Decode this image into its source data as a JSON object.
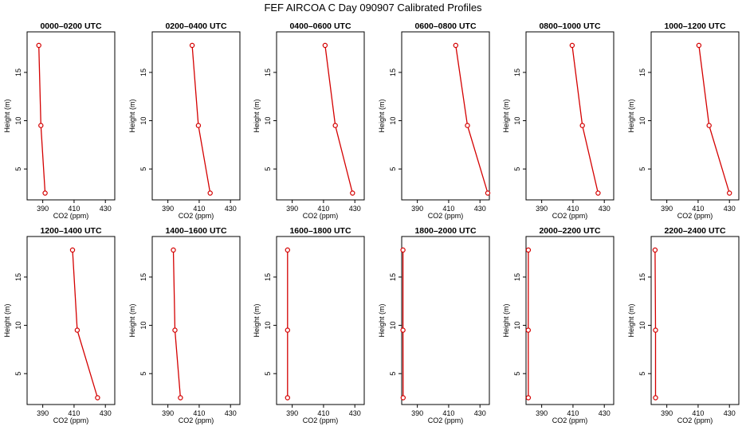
{
  "figure_title": "FEF AIRCOA C  Day 090907  Calibrated Profiles",
  "chart_data": [
    {
      "type": "line",
      "title": "0000–0200 UTC",
      "xlabel": "CO2 (ppm)",
      "ylabel": "Height (m)",
      "xlim": [
        380,
        436
      ],
      "ylim": [
        1.8,
        19.2
      ],
      "xticks": [
        390,
        410,
        430
      ],
      "yticks": [
        5,
        10,
        15
      ],
      "x": [
        387.5,
        388.8,
        391.5
      ],
      "y": [
        17.8,
        9.5,
        2.5
      ]
    },
    {
      "type": "line",
      "title": "0200–0400 UTC",
      "xlabel": "CO2 (ppm)",
      "ylabel": "Height (m)",
      "xlim": [
        380,
        436
      ],
      "ylim": [
        1.8,
        19.2
      ],
      "xticks": [
        390,
        410,
        430
      ],
      "yticks": [
        5,
        10,
        15
      ],
      "x": [
        405.5,
        409.5,
        417.0
      ],
      "y": [
        17.8,
        9.5,
        2.5
      ]
    },
    {
      "type": "line",
      "title": "0400–0600 UTC",
      "xlabel": "CO2 (ppm)",
      "ylabel": "Height (m)",
      "xlim": [
        380,
        436
      ],
      "ylim": [
        1.8,
        19.2
      ],
      "xticks": [
        390,
        410,
        430
      ],
      "yticks": [
        5,
        10,
        15
      ],
      "x": [
        411.0,
        417.5,
        428.5
      ],
      "y": [
        17.8,
        9.5,
        2.5
      ]
    },
    {
      "type": "line",
      "title": "0600–0800 UTC",
      "xlabel": "CO2 (ppm)",
      "ylabel": "Height (m)",
      "xlim": [
        380,
        436
      ],
      "ylim": [
        1.8,
        19.2
      ],
      "xticks": [
        390,
        410,
        430
      ],
      "yticks": [
        5,
        10,
        15
      ],
      "x": [
        414.5,
        422.0,
        435.0
      ],
      "y": [
        17.8,
        9.5,
        2.5
      ]
    },
    {
      "type": "line",
      "title": "0800–1000 UTC",
      "xlabel": "CO2 (ppm)",
      "ylabel": "Height (m)",
      "xlim": [
        380,
        436
      ],
      "ylim": [
        1.8,
        19.2
      ],
      "xticks": [
        390,
        410,
        430
      ],
      "yticks": [
        5,
        10,
        15
      ],
      "x": [
        409.5,
        416.0,
        426.0
      ],
      "y": [
        17.8,
        9.5,
        2.5
      ]
    },
    {
      "type": "line",
      "title": "1000–1200 UTC",
      "xlabel": "CO2 (ppm)",
      "ylabel": "Height (m)",
      "xlim": [
        380,
        436
      ],
      "ylim": [
        1.8,
        19.2
      ],
      "xticks": [
        390,
        410,
        430
      ],
      "yticks": [
        5,
        10,
        15
      ],
      "x": [
        410.5,
        417.0,
        430.0
      ],
      "y": [
        17.8,
        9.5,
        2.5
      ]
    },
    {
      "type": "line",
      "title": "1200–1400 UTC",
      "xlabel": "CO2 (ppm)",
      "ylabel": "Height (m)",
      "xlim": [
        380,
        436
      ],
      "ylim": [
        1.8,
        19.2
      ],
      "xticks": [
        390,
        410,
        430
      ],
      "yticks": [
        5,
        10,
        15
      ],
      "x": [
        409.0,
        412.0,
        425.0
      ],
      "y": [
        17.8,
        9.5,
        2.5
      ]
    },
    {
      "type": "line",
      "title": "1400–1600 UTC",
      "xlabel": "CO2 (ppm)",
      "ylabel": "Height (m)",
      "xlim": [
        380,
        436
      ],
      "ylim": [
        1.8,
        19.2
      ],
      "xticks": [
        390,
        410,
        430
      ],
      "yticks": [
        5,
        10,
        15
      ],
      "x": [
        393.5,
        394.5,
        398.0
      ],
      "y": [
        17.8,
        9.5,
        2.5
      ]
    },
    {
      "type": "line",
      "title": "1600–1800 UTC",
      "xlabel": "CO2 (ppm)",
      "ylabel": "Height (m)",
      "xlim": [
        380,
        436
      ],
      "ylim": [
        1.8,
        19.2
      ],
      "xticks": [
        390,
        410,
        430
      ],
      "yticks": [
        5,
        10,
        15
      ],
      "x": [
        387.0,
        387.0,
        387.0
      ],
      "y": [
        17.8,
        9.5,
        2.5
      ]
    },
    {
      "type": "line",
      "title": "1800–2000 UTC",
      "xlabel": "CO2 (ppm)",
      "ylabel": "Height (m)",
      "xlim": [
        380,
        436
      ],
      "ylim": [
        1.8,
        19.2
      ],
      "xticks": [
        390,
        410,
        430
      ],
      "yticks": [
        5,
        10,
        15
      ],
      "x": [
        380.8,
        380.8,
        380.9
      ],
      "y": [
        17.8,
        9.5,
        2.5
      ]
    },
    {
      "type": "line",
      "title": "2000–2200 UTC",
      "xlabel": "CO2 (ppm)",
      "ylabel": "Height (m)",
      "xlim": [
        380,
        436
      ],
      "ylim": [
        1.8,
        19.2
      ],
      "xticks": [
        390,
        410,
        430
      ],
      "yticks": [
        5,
        10,
        15
      ],
      "x": [
        381.5,
        381.4,
        381.5
      ],
      "y": [
        17.8,
        9.5,
        2.5
      ]
    },
    {
      "type": "line",
      "title": "2200–2400 UTC",
      "xlabel": "CO2 (ppm)",
      "ylabel": "Height (m)",
      "xlim": [
        380,
        436
      ],
      "ylim": [
        1.8,
        19.2
      ],
      "xticks": [
        390,
        410,
        430
      ],
      "yticks": [
        5,
        10,
        15
      ],
      "x": [
        382.5,
        382.8,
        382.8
      ],
      "y": [
        17.8,
        9.5,
        2.5
      ]
    }
  ]
}
